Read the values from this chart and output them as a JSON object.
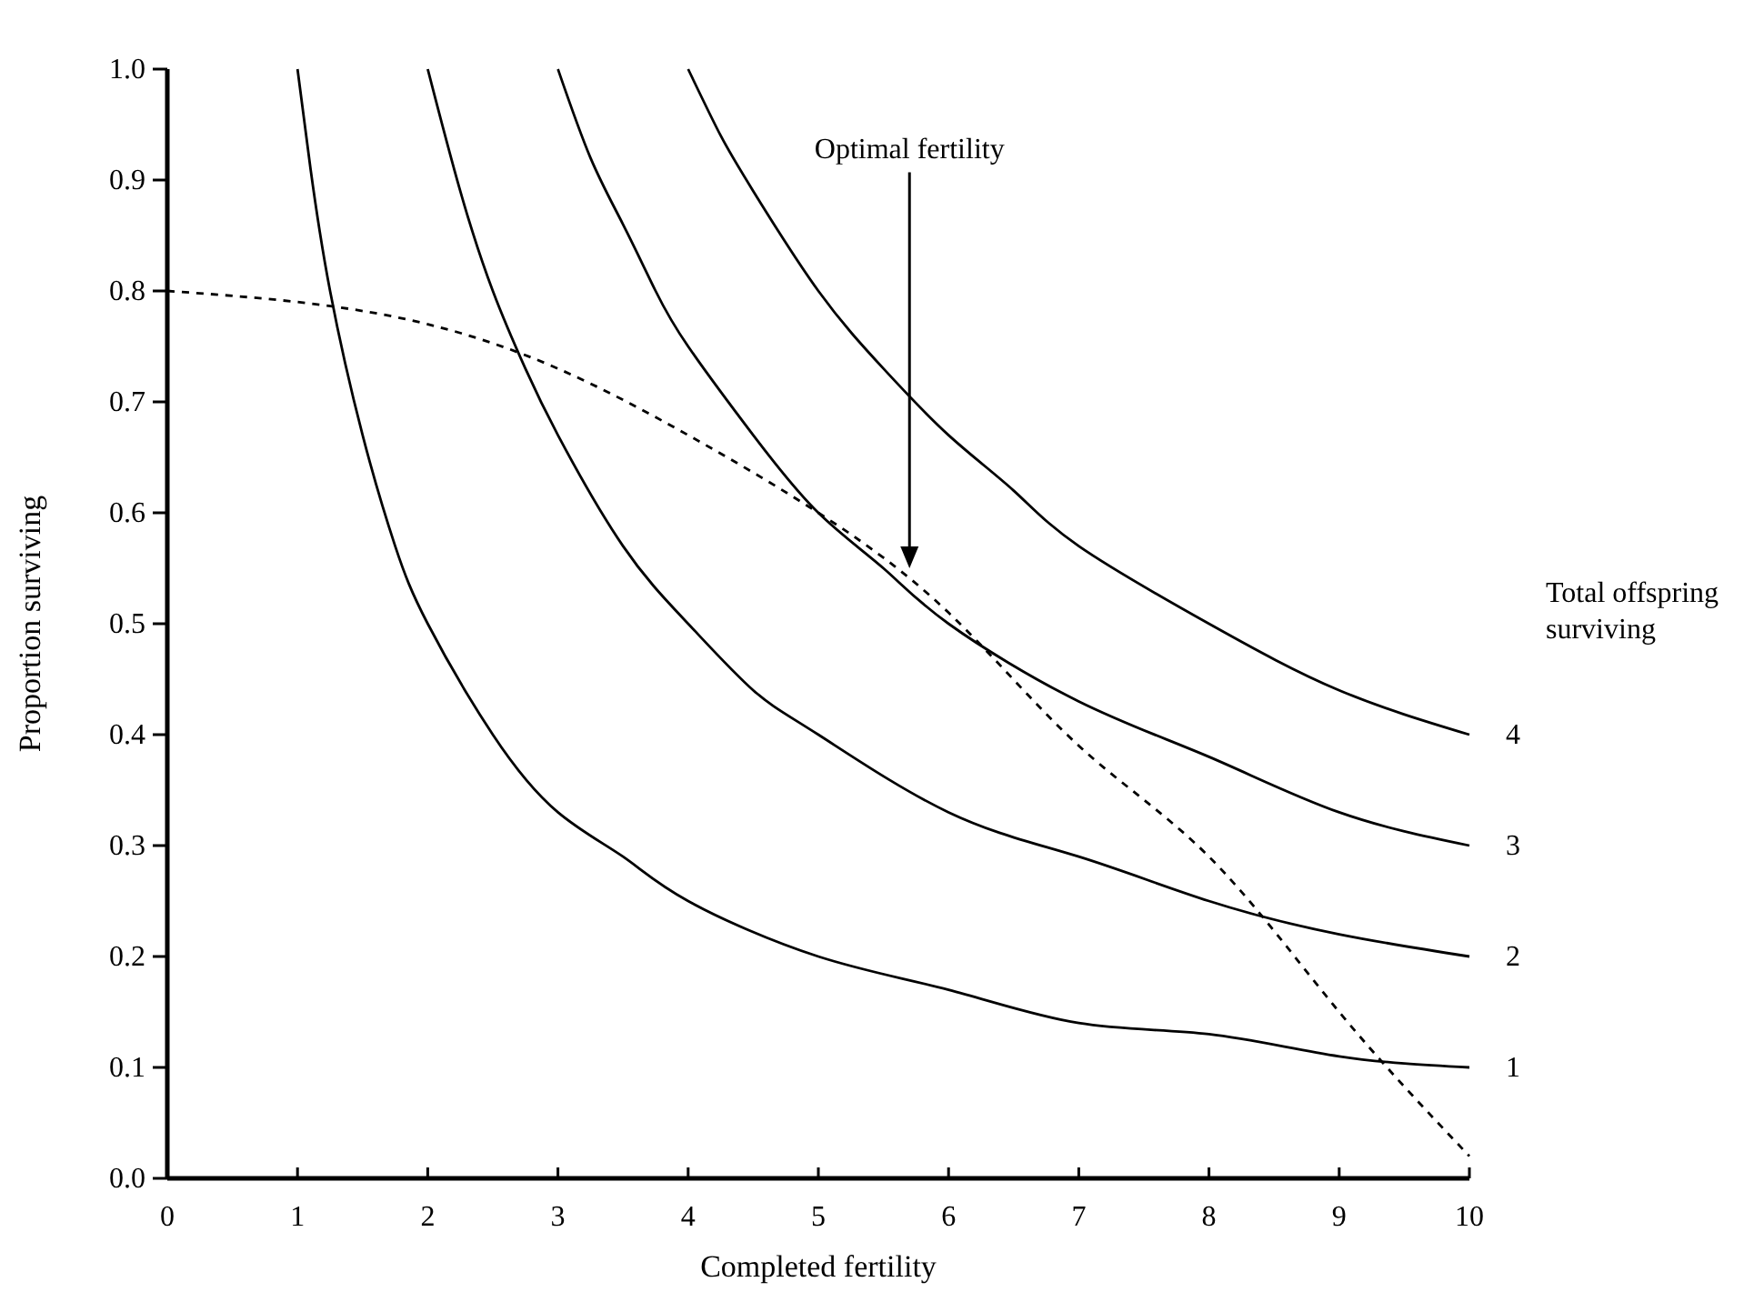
{
  "chart_data": {
    "type": "line",
    "xlabel": "Completed fertility",
    "ylabel": "Proportion surviving",
    "legend_title": "Total offspring surviving",
    "xlim": [
      0,
      10
    ],
    "ylim": [
      0,
      1
    ],
    "xticks": [
      0,
      1,
      2,
      3,
      4,
      5,
      6,
      7,
      8,
      9,
      10
    ],
    "yticks": [
      {
        "value": 0,
        "label": "0.0"
      },
      {
        "value": 0.1,
        "label": "0.1"
      },
      {
        "value": 0.2,
        "label": "0.2"
      },
      {
        "value": 0.3,
        "label": "0.3"
      },
      {
        "value": 0.4,
        "label": "0.4"
      },
      {
        "value": 0.5,
        "label": "0.5"
      },
      {
        "value": 0.6,
        "label": "0.6"
      },
      {
        "value": 0.7,
        "label": "0.7"
      },
      {
        "value": 0.8,
        "label": "0.8"
      },
      {
        "value": 0.9,
        "label": "0.9"
      },
      {
        "value": 1,
        "label": "1.0"
      }
    ],
    "grid": false,
    "legend": "right",
    "marker": "none",
    "annotations": [
      {
        "text": "Optimal fertility",
        "x": 5.7,
        "y": 0.55
      }
    ],
    "series": [
      {
        "name": "1",
        "color": "#000000",
        "line_style": "solid",
        "x": [
          1,
          1.1,
          1.25,
          1.5,
          1.75,
          2,
          2.5,
          3,
          3.5,
          4,
          5,
          6,
          7,
          8,
          9,
          10
        ],
        "values": [
          1,
          0.91,
          0.8,
          0.67,
          0.57,
          0.5,
          0.4,
          0.33,
          0.29,
          0.25,
          0.2,
          0.17,
          0.14,
          0.13,
          0.11,
          0.1
        ]
      },
      {
        "name": "2",
        "color": "#000000",
        "line_style": "solid",
        "x": [
          2,
          2.25,
          2.5,
          2.75,
          3,
          3.5,
          4,
          4.5,
          5,
          6,
          7,
          8,
          9,
          10
        ],
        "values": [
          1,
          0.89,
          0.8,
          0.73,
          0.67,
          0.57,
          0.5,
          0.44,
          0.4,
          0.33,
          0.29,
          0.25,
          0.22,
          0.2
        ]
      },
      {
        "name": "3",
        "color": "#000000",
        "line_style": "solid",
        "x": [
          3,
          3.25,
          3.5,
          3.75,
          4,
          4.5,
          5,
          5.5,
          6,
          7,
          8,
          9,
          10
        ],
        "values": [
          1,
          0.92,
          0.86,
          0.8,
          0.75,
          0.67,
          0.6,
          0.55,
          0.5,
          0.43,
          0.38,
          0.33,
          0.3
        ]
      },
      {
        "name": "4",
        "color": "#000000",
        "line_style": "solid",
        "x": [
          4,
          4.25,
          4.5,
          5,
          5.5,
          6,
          6.5,
          7,
          8,
          9,
          10
        ],
        "values": [
          1,
          0.94,
          0.89,
          0.8,
          0.73,
          0.67,
          0.62,
          0.57,
          0.5,
          0.44,
          0.4
        ]
      },
      {
        "color": "#000000",
        "line_style": "dashed",
        "x": [
          0,
          1,
          2,
          3,
          4,
          5,
          6,
          7,
          8,
          9,
          10
        ],
        "values": [
          0.8,
          0.79,
          0.77,
          0.73,
          0.67,
          0.6,
          0.51,
          0.39,
          0.29,
          0.15,
          0.02
        ]
      }
    ]
  }
}
